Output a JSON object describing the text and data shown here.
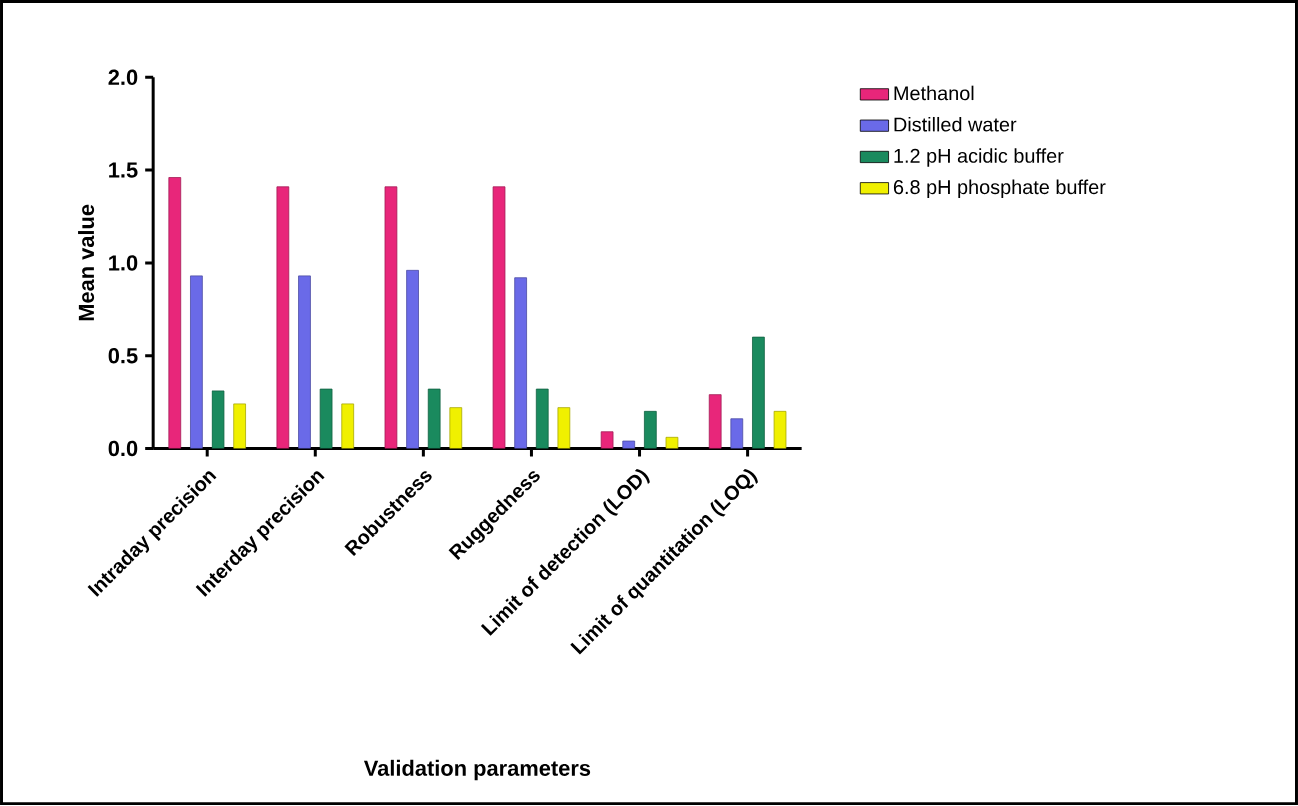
{
  "chart_data": {
    "type": "bar",
    "xlabel": "Validation parameters",
    "ylabel": "Mean value",
    "categories": [
      "Intraday precision",
      "Interday precision",
      "Robustness",
      "Ruggedness",
      "Limit of detection (LOD)",
      "Limit of quantitation (LOQ)"
    ],
    "series": [
      {
        "name": "Methanol",
        "color": "#e8267a",
        "values": [
          1.46,
          1.41,
          1.41,
          1.41,
          0.09,
          0.29
        ]
      },
      {
        "name": "Distilled water",
        "color": "#6a6ae8",
        "values": [
          0.93,
          0.93,
          0.96,
          0.92,
          0.04,
          0.16
        ]
      },
      {
        "name": "1.2 pH acidic buffer",
        "color": "#1a8a5e",
        "values": [
          0.31,
          0.32,
          0.32,
          0.32,
          0.2,
          0.6
        ]
      },
      {
        "name": "6.8 pH phosphate buffer",
        "color": "#f0f000",
        "values": [
          0.24,
          0.24,
          0.22,
          0.22,
          0.06,
          0.2
        ]
      }
    ],
    "ylim": [
      0,
      2.0
    ],
    "yticks": [
      {
        "value": 0,
        "label": "0.0"
      },
      {
        "value": 0.5,
        "label": "0.5"
      },
      {
        "value": 1.0,
        "label": "1.0"
      },
      {
        "value": 1.5,
        "label": "1.5"
      },
      {
        "value": 2.0,
        "label": "2.0"
      }
    ],
    "grid": false,
    "legend": "top right"
  }
}
